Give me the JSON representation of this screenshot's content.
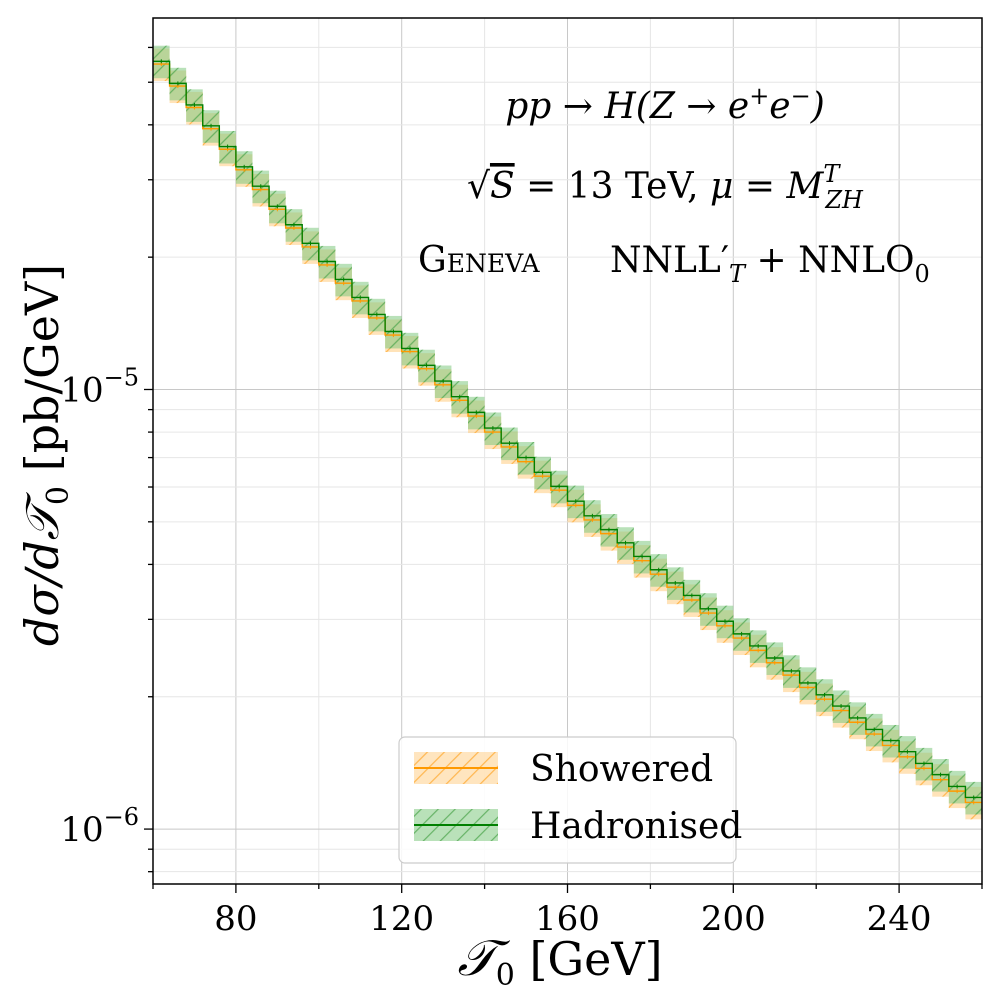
{
  "chart_data": {
    "type": "line",
    "xlabel": "T0 [GeV]",
    "ylabel": "dσ/dT0 [pb/GeV]",
    "xlim": [
      60,
      260
    ],
    "ylim": [
      7.5e-07,
      7e-05
    ],
    "yscale": "log",
    "grid": true,
    "x_ticks": [
      80,
      120,
      160,
      200,
      240
    ],
    "y_ticks": [
      {
        "value": 1e-05,
        "base": "10",
        "exp": "−5"
      },
      {
        "value": 1e-06,
        "base": "10",
        "exp": "−6"
      }
    ],
    "annotations": [
      "pp → H(Z → e⁺e⁻)",
      "√S = 13 TeV,  μ = M^T_ZH",
      "Geneva",
      "NNLL′_T + NNLO₀"
    ],
    "legend_position": "lower center",
    "x_edges": [
      60,
      64,
      68,
      72,
      76,
      80,
      84,
      88,
      92,
      96,
      100,
      104,
      108,
      112,
      116,
      120,
      124,
      128,
      132,
      136,
      140,
      144,
      148,
      152,
      156,
      160,
      164,
      168,
      172,
      176,
      180,
      184,
      188,
      192,
      196,
      200,
      204,
      208,
      212,
      216,
      220,
      224,
      228,
      232,
      236,
      240,
      244,
      248,
      252,
      256,
      260
    ],
    "series": [
      {
        "name": "Showered",
        "color": "#ff9900",
        "band_color": "#ffcc80",
        "values": [
          5.5e-05,
          4.9e-05,
          4.38e-05,
          3.92e-05,
          3.52e-05,
          3.16e-05,
          2.85e-05,
          2.57e-05,
          2.33e-05,
          2.11e-05,
          1.92e-05,
          1.745e-05,
          1.59e-05,
          1.455e-05,
          1.33e-05,
          1.22e-05,
          1.115e-05,
          1.025e-05,
          9.45e-06,
          8.7e-06,
          8e-06,
          7.4e-06,
          6.85e-06,
          6.35e-06,
          5.9e-06,
          5.45e-06,
          5.05e-06,
          4.7e-06,
          4.38e-06,
          4.08e-06,
          3.8e-06,
          3.55e-06,
          3.32e-06,
          3.1e-06,
          2.9e-06,
          2.72e-06,
          2.55e-06,
          2.39e-06,
          2.24e-06,
          2.1e-06,
          1.975e-06,
          1.86e-06,
          1.75e-06,
          1.645e-06,
          1.55e-06,
          1.46e-06,
          1.375e-06,
          1.295e-06,
          1.22e-06,
          1.15e-06
        ]
      },
      {
        "name": "Hadronised",
        "color": "#008000",
        "band_color": "#7fc97f",
        "values": [
          5.58e-05,
          4.97e-05,
          4.44e-05,
          3.98e-05,
          3.57e-05,
          3.21e-05,
          2.9e-05,
          2.61e-05,
          2.37e-05,
          2.15e-05,
          1.955e-05,
          1.78e-05,
          1.62e-05,
          1.482e-05,
          1.355e-05,
          1.24e-05,
          1.135e-05,
          1.045e-05,
          9.63e-06,
          8.87e-06,
          8.17e-06,
          7.55e-06,
          7e-06,
          6.48e-06,
          6.02e-06,
          5.57e-06,
          5.16e-06,
          4.8e-06,
          4.48e-06,
          4.17e-06,
          3.89e-06,
          3.63e-06,
          3.4e-06,
          3.17e-06,
          2.97e-06,
          2.78e-06,
          2.61e-06,
          2.45e-06,
          2.29e-06,
          2.15e-06,
          2.02e-06,
          1.905e-06,
          1.79e-06,
          1.685e-06,
          1.59e-06,
          1.5e-06,
          1.41e-06,
          1.33e-06,
          1.25e-06,
          1.18e-06
        ]
      }
    ]
  }
}
